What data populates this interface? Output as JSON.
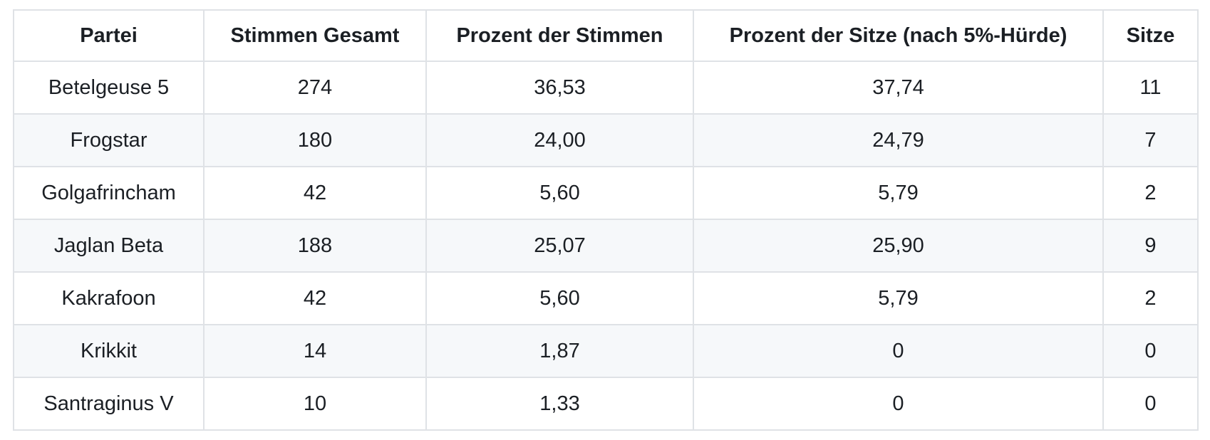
{
  "table": {
    "columns": [
      "Partei",
      "Stimmen Gesamt",
      "Prozent der Stimmen",
      "Prozent der Sitze (nach 5%-Hürde)",
      "Sitze"
    ],
    "rows": [
      [
        "Betelgeuse 5",
        "274",
        "36,53",
        "37,74",
        "11"
      ],
      [
        "Frogstar",
        "180",
        "24,00",
        "24,79",
        "7"
      ],
      [
        "Golgafrincham",
        "42",
        "5,60",
        "5,79",
        "2"
      ],
      [
        "Jaglan Beta",
        "188",
        "25,07",
        "25,90",
        "9"
      ],
      [
        "Kakrafoon",
        "42",
        "5,60",
        "5,79",
        "2"
      ],
      [
        "Krikkit",
        "14",
        "1,87",
        "0",
        "0"
      ],
      [
        "Santraginus V",
        "10",
        "1,33",
        "0",
        "0"
      ]
    ]
  },
  "colors": {
    "text": "#1b1f24",
    "border": "#dfe2e6",
    "row_stripe": "#f6f8fa",
    "background": "#ffffff"
  }
}
